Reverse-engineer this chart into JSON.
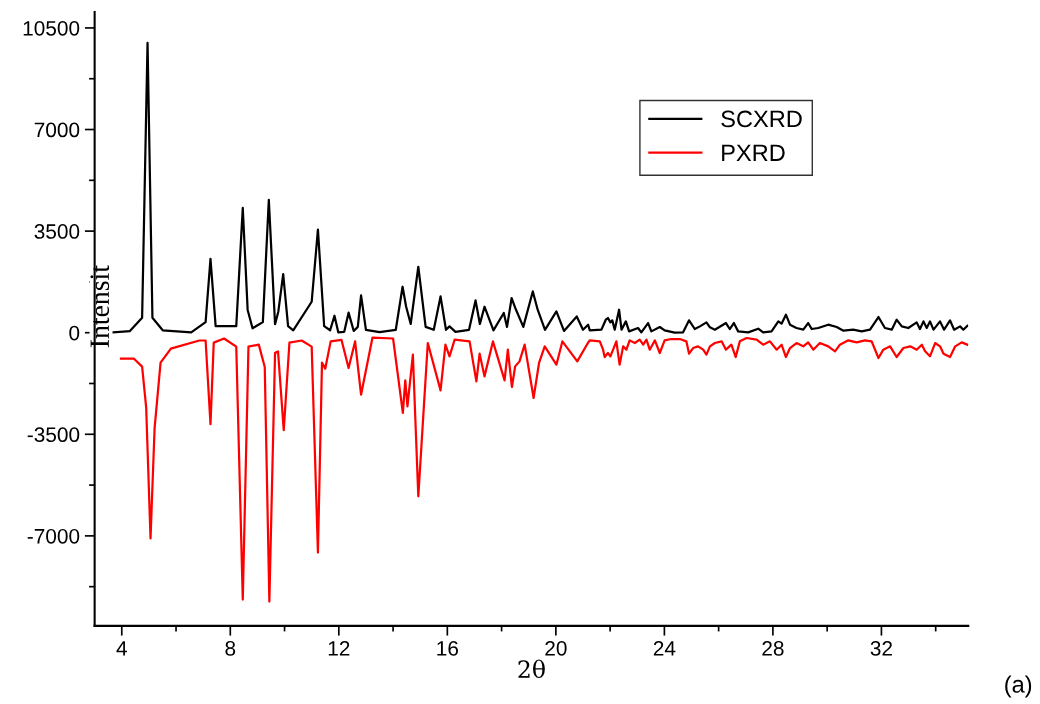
{
  "chart_data": {
    "type": "line",
    "xlabel": "2θ",
    "ylabel": "Intensit",
    "annotations": [
      "(a)"
    ],
    "xlim": [
      3,
      35.2
    ],
    "xticks": [
      4,
      8,
      12,
      16,
      20,
      24,
      28,
      32
    ],
    "ylim": [
      -10100,
      11050
    ],
    "yticks": [
      -7000,
      -3500,
      0,
      3500,
      7000,
      10500
    ],
    "legend": "top right",
    "grid": false,
    "series": [
      {
        "name": "SCXRD",
        "color": "#000000",
        "x": [
          3.7,
          4.3,
          4.75,
          4.95,
          5.13,
          5.51,
          6.56,
          7.09,
          7.27,
          7.46,
          8.22,
          8.46,
          8.64,
          8.82,
          9.2,
          9.42,
          9.65,
          9.77,
          9.95,
          10.13,
          10.32,
          11.0,
          11.23,
          11.46,
          11.68,
          11.84,
          11.98,
          12.2,
          12.36,
          12.55,
          12.7,
          12.82,
          13.0,
          13.5,
          14.1,
          14.35,
          14.48,
          14.65,
          14.93,
          15.2,
          15.5,
          15.75,
          15.95,
          16.08,
          16.3,
          16.8,
          17.04,
          17.2,
          17.37,
          17.7,
          18.08,
          18.2,
          18.37,
          18.5,
          18.8,
          19.15,
          19.33,
          19.6,
          20.02,
          20.3,
          20.77,
          21.0,
          21.19,
          21.25,
          21.68,
          21.84,
          21.92,
          22.01,
          22.08,
          22.17,
          22.33,
          22.42,
          22.58,
          22.7,
          23.03,
          23.15,
          23.4,
          23.52,
          23.83,
          24.01,
          24.38,
          24.69,
          24.91,
          25.12,
          25.31,
          25.55,
          25.68,
          25.86,
          26.27,
          26.41,
          26.56,
          26.72,
          27.09,
          27.46,
          27.64,
          27.95,
          28.2,
          28.32,
          28.48,
          28.63,
          28.87,
          29.12,
          29.3,
          29.43,
          29.67,
          30.04,
          30.35,
          30.6,
          30.96,
          31.27,
          31.58,
          31.89,
          32.13,
          32.38,
          32.56,
          32.75,
          32.99,
          33.3,
          33.42,
          33.55,
          33.67,
          33.79,
          33.92,
          34.16,
          34.31,
          34.53,
          34.68,
          34.9,
          35.02,
          35.17
        ],
        "values": [
          15,
          55,
          516,
          9988,
          516,
          82,
          14,
          365,
          2541,
          224,
          224,
          4297,
          785,
          152,
          365,
          4579,
          293,
          723,
          2021,
          224,
          83,
          1067,
          3553,
          224,
          83,
          585,
          14,
          30,
          690,
          60,
          200,
          1284,
          100,
          20,
          100,
          1584,
          905,
          300,
          2272,
          200,
          100,
          1250,
          100,
          217,
          30,
          100,
          1112,
          300,
          895,
          80,
          678,
          200,
          1194,
          860,
          200,
          1422,
          792,
          100,
          733,
          60,
          561,
          100,
          275,
          81,
          104,
          448,
          505,
          356,
          425,
          104,
          792,
          104,
          390,
          46,
          161,
          12,
          333,
          46,
          195,
          81,
          0,
          12,
          425,
          127,
          218,
          356,
          184,
          104,
          333,
          127,
          333,
          46,
          12,
          138,
          12,
          46,
          390,
          310,
          620,
          276,
          161,
          104,
          333,
          127,
          161,
          276,
          195,
          69,
          104,
          46,
          104,
          540,
          161,
          104,
          448,
          218,
          161,
          356,
          127,
          390,
          161,
          390,
          104,
          390,
          104,
          425,
          104,
          218,
          104,
          241
        ]
      },
      {
        "name": "PXRD",
        "color": "#ff0000",
        "x": [
          3.97,
          4.45,
          4.75,
          4.9,
          5.06,
          5.21,
          5.43,
          5.81,
          6.86,
          7.09,
          7.27,
          7.39,
          7.77,
          8.22,
          8.46,
          8.67,
          9.05,
          9.27,
          9.44,
          9.65,
          9.76,
          9.97,
          10.18,
          10.63,
          11.0,
          11.23,
          11.38,
          11.5,
          11.7,
          12.1,
          12.36,
          12.6,
          12.82,
          13.24,
          14.0,
          14.36,
          14.45,
          14.53,
          14.73,
          14.93,
          15.28,
          15.75,
          15.93,
          16.08,
          16.27,
          16.82,
          17.07,
          17.19,
          17.37,
          17.68,
          18.11,
          18.23,
          18.38,
          18.5,
          18.66,
          18.85,
          19.18,
          19.38,
          19.59,
          20.02,
          20.24,
          20.79,
          21.18,
          21.25,
          21.62,
          21.74,
          21.8,
          21.92,
          22.01,
          22.11,
          22.23,
          22.35,
          22.48,
          22.6,
          22.72,
          22.91,
          23.09,
          23.22,
          23.34,
          23.46,
          23.65,
          23.83,
          24.01,
          24.26,
          24.57,
          24.81,
          24.91,
          25.06,
          25.24,
          25.43,
          25.55,
          25.68,
          25.86,
          26.11,
          26.27,
          26.47,
          26.63,
          26.78,
          27.03,
          27.4,
          27.64,
          27.89,
          28.14,
          28.32,
          28.48,
          28.63,
          28.87,
          29.12,
          29.3,
          29.49,
          29.73,
          30.04,
          30.29,
          30.47,
          30.78,
          31.09,
          31.39,
          31.64,
          31.89,
          32.07,
          32.32,
          32.56,
          32.81,
          33.06,
          33.3,
          33.49,
          33.61,
          33.79,
          33.98,
          34.16,
          34.29,
          34.53,
          34.72,
          34.96,
          35.17
        ],
        "values": [
          -895,
          -895,
          -1170,
          -2582,
          -7086,
          -3291,
          -1033,
          -551,
          -269,
          -269,
          -3150,
          -341,
          -200,
          -479,
          -9193,
          -479,
          -410,
          -1181,
          -9262,
          -689,
          -647,
          -3360,
          -341,
          -269,
          -479,
          -7575,
          -1033,
          -1240,
          -300,
          -250,
          -1216,
          -300,
          -2135,
          -172,
          -200,
          -2765,
          -1642,
          -2537,
          -757,
          -5636,
          -355,
          -1987,
          -413,
          -816,
          -241,
          -300,
          -1677,
          -723,
          -1505,
          -300,
          -1642,
          -585,
          -1870,
          -1160,
          -988,
          -413,
          -2248,
          -1043,
          -472,
          -1102,
          -300,
          -988,
          -355,
          -264,
          -298,
          -585,
          -838,
          -700,
          -814,
          -585,
          -298,
          -1102,
          -470,
          -585,
          -264,
          -356,
          -241,
          -413,
          -241,
          -585,
          -264,
          -700,
          -264,
          -218,
          -218,
          -298,
          -723,
          -528,
          -470,
          -585,
          -757,
          -470,
          -356,
          -298,
          -585,
          -413,
          -838,
          -298,
          -183,
          -241,
          -413,
          -298,
          -585,
          -413,
          -838,
          -528,
          -356,
          -470,
          -333,
          -585,
          -356,
          -470,
          -642,
          -413,
          -264,
          -333,
          -264,
          -298,
          -872,
          -585,
          -470,
          -838,
          -528,
          -470,
          -585,
          -413,
          -642,
          -814,
          -356,
          -470,
          -723,
          -838,
          -470,
          -333,
          -413
        ]
      }
    ]
  }
}
